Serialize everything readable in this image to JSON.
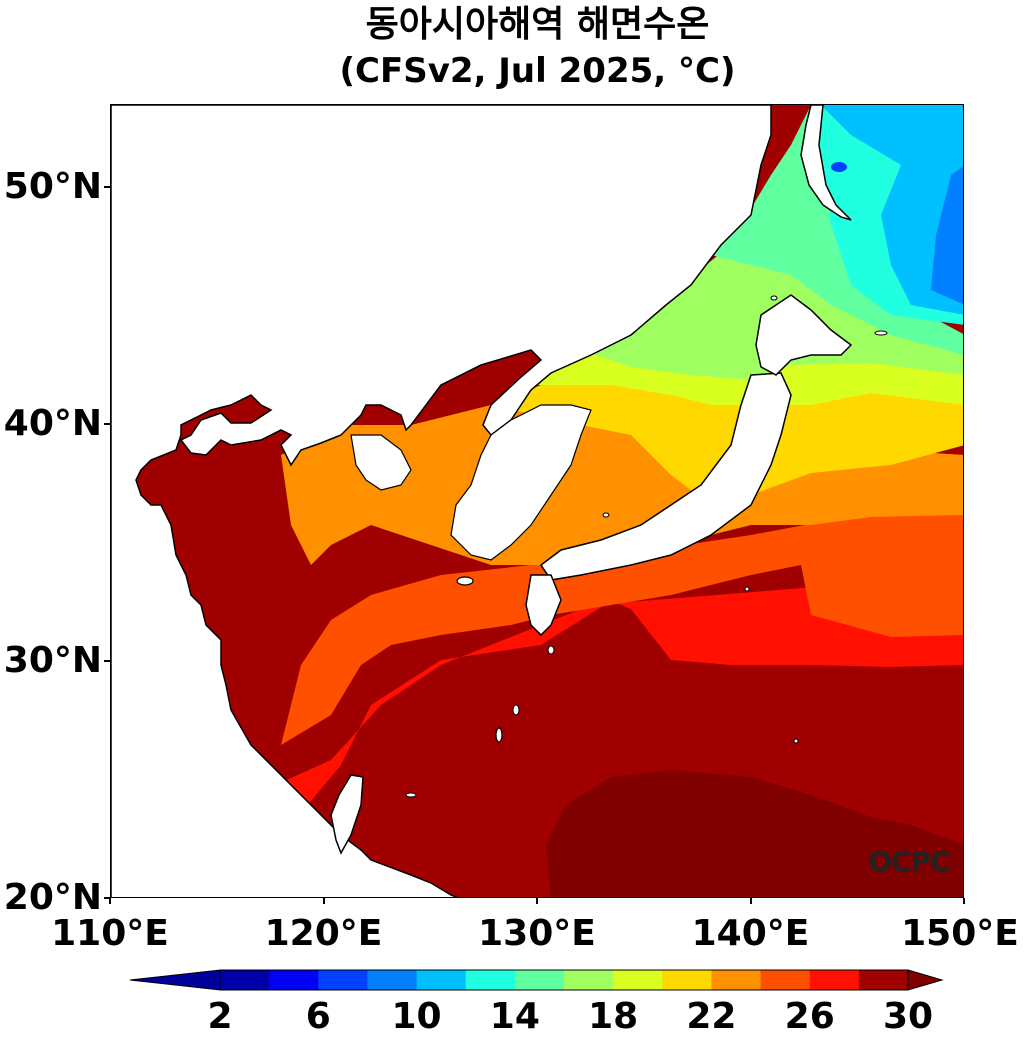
{
  "title": {
    "line1": "동아시아해역 해면수온",
    "line2": "(CFSv2, Jul 2025, °C)"
  },
  "watermark": "OCPC",
  "map": {
    "lon_range": [
      110,
      150
    ],
    "lat_range": [
      20,
      53.5
    ],
    "lat_ticks": [
      {
        "value": 50,
        "label": "50°N"
      },
      {
        "value": 40,
        "label": "40°N"
      },
      {
        "value": 30,
        "label": "30°N"
      },
      {
        "value": 20,
        "label": "20°N"
      }
    ],
    "lon_ticks": [
      {
        "value": 110,
        "label": "110°E"
      },
      {
        "value": 120,
        "label": "120°E"
      },
      {
        "value": 130,
        "label": "130°E"
      },
      {
        "value": 140,
        "label": "140°E"
      },
      {
        "value": 150,
        "label": "150°E"
      }
    ]
  },
  "colorbar": {
    "levels": [
      2,
      4,
      6,
      8,
      10,
      12,
      14,
      16,
      18,
      20,
      22,
      24,
      26,
      28,
      30
    ],
    "colors": [
      "#0000a8",
      "#0000f5",
      "#0040ff",
      "#0080ff",
      "#00c0ff",
      "#20ffe0",
      "#60ffa0",
      "#a0ff60",
      "#d8ff20",
      "#ffd800",
      "#ff9000",
      "#ff5000",
      "#ff1000",
      "#a00000"
    ],
    "under_color": "#00009a",
    "over_color": "#800000",
    "tick_labels": [
      "2",
      "6",
      "10",
      "14",
      "18",
      "22",
      "26",
      "30"
    ]
  }
}
